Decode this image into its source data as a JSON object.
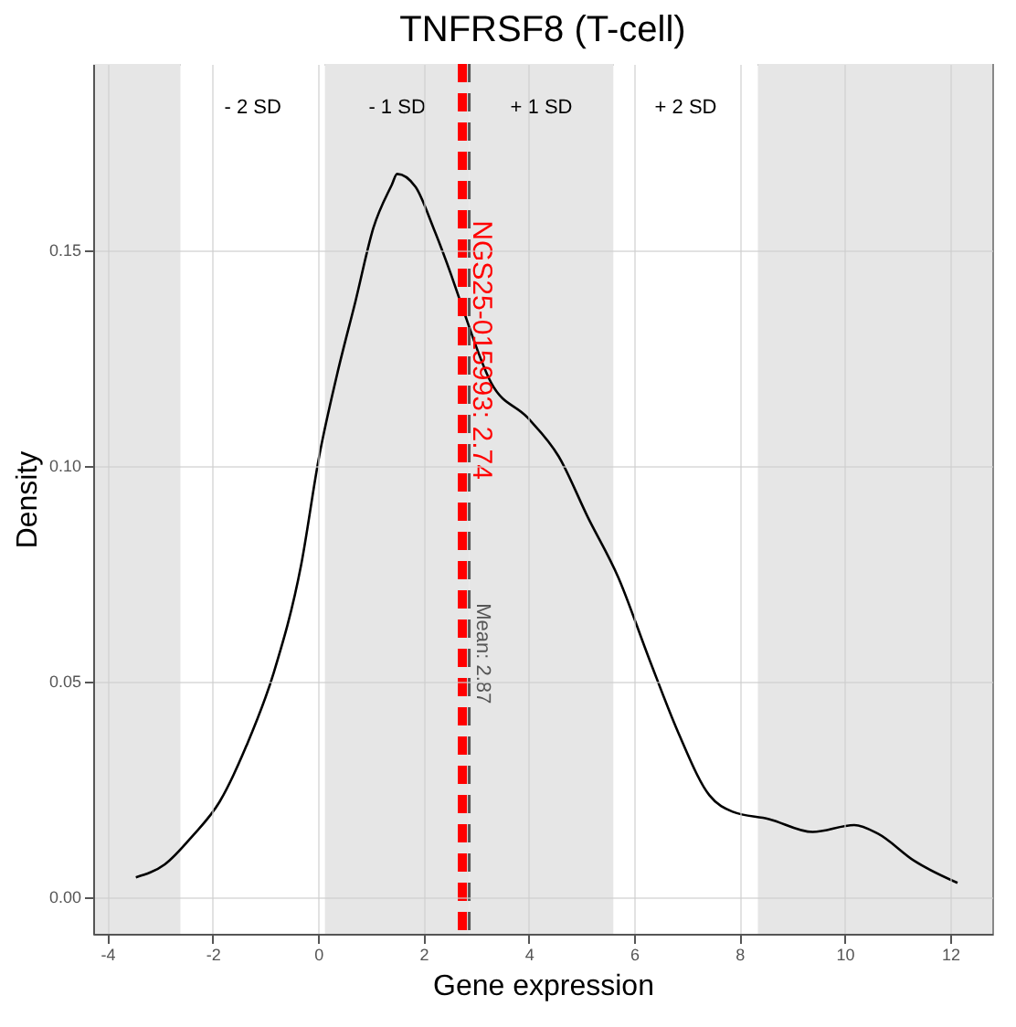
{
  "chart_data": {
    "type": "line",
    "title": "TNFRSF8 (T-cell)",
    "xlabel": "Gene expression",
    "ylabel": "Density",
    "x": [
      -3.46,
      -2.91,
      -2.39,
      -1.87,
      -1.36,
      -0.84,
      -0.32,
      0.02,
      0.36,
      0.71,
      1.05,
      1.4,
      1.5,
      1.85,
      2.19,
      2.53,
      2.7,
      3.29,
      3.98,
      4.57,
      5.12,
      5.7,
      6.29,
      6.84,
      7.43,
      7.87,
      8.56,
      9.39,
      10.18,
      10.63,
      11.32,
      12.14
    ],
    "series": [
      {
        "color": "#000000",
        "values": [
          0.0045,
          0.0075,
          0.014,
          0.022,
          0.035,
          0.052,
          0.077,
          0.102,
          0.121,
          0.138,
          0.155,
          0.165,
          0.1675,
          0.1645,
          0.155,
          0.144,
          0.138,
          0.119,
          0.111,
          0.102,
          0.088,
          0.074,
          0.055,
          0.038,
          0.0235,
          0.0197,
          0.018,
          0.015,
          0.0166,
          0.0146,
          0.0083,
          0.0032
        ]
      }
    ],
    "xlim": [
      -4.27,
      12.8
    ],
    "ylim": [
      -0.0086,
      0.193
    ],
    "xticks": [
      -4,
      -2,
      0,
      2,
      4,
      6,
      8,
      10,
      12
    ],
    "yticks": [
      {
        "value": 0,
        "label": "0.00"
      },
      {
        "value": 0.05,
        "label": "0.05"
      },
      {
        "value": 0.1,
        "label": "0.10"
      },
      {
        "value": 0.15,
        "label": "0.15"
      }
    ],
    "grid": true,
    "marker": "none",
    "line_style": "solid",
    "bands": [
      {
        "axis": "x",
        "from": -4.27,
        "to": -2.61,
        "color": "#e6e6e6"
      },
      {
        "axis": "x",
        "from": -2.61,
        "to": 0.13,
        "label": "- 2 SD",
        "color": "#ffffff"
      },
      {
        "axis": "x",
        "from": 0.13,
        "to": 2.87,
        "label": "- 1 SD",
        "color": "#e6e6e6"
      },
      {
        "axis": "x",
        "from": 2.87,
        "to": 5.61,
        "label": "+ 1 SD",
        "color": "#e6e6e6"
      },
      {
        "axis": "x",
        "from": 5.61,
        "to": 8.35,
        "label": "+ 2 SD",
        "color": "#ffffff"
      },
      {
        "axis": "x",
        "from": 8.35,
        "to": 12.8,
        "color": "#e6e6e6"
      }
    ],
    "ref_lines": [
      {
        "axis": "x",
        "value": 2.74,
        "label": "NGS25-015993: 2.74",
        "color": "#ff0000",
        "line_style": "dashed"
      },
      {
        "axis": "x",
        "value": 2.87,
        "label": "Mean: 2.87",
        "color": "#555555",
        "line_style": "dashed"
      }
    ]
  }
}
